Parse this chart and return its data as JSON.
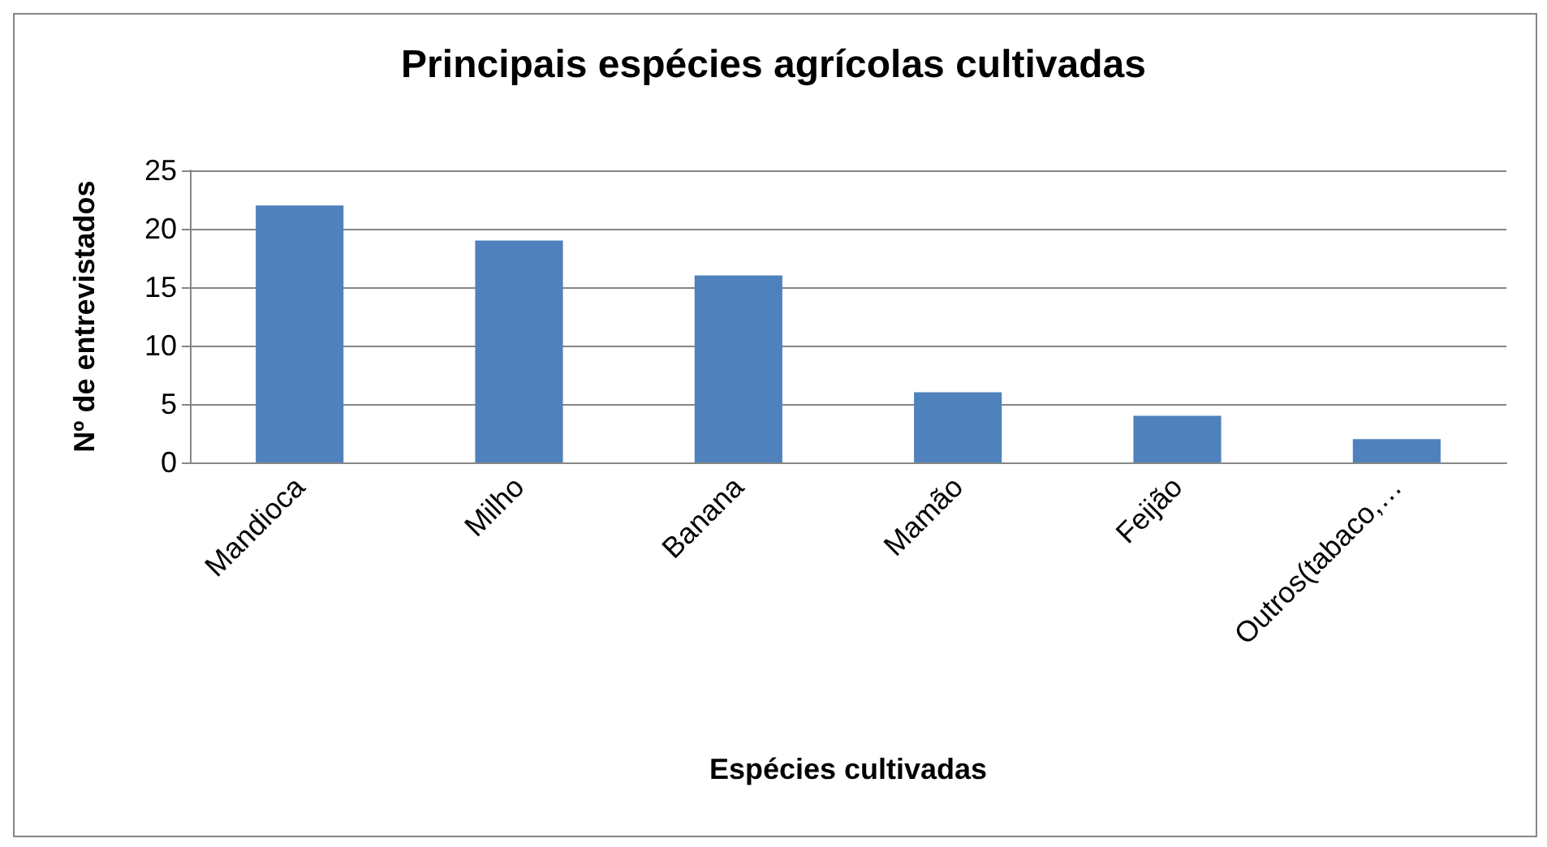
{
  "chart_data": {
    "type": "bar",
    "title": "Principais espécies agrícolas cultivadas",
    "xlabel": "Espécies cultivadas",
    "ylabel": "Nº de entrevistados",
    "categories": [
      "Mandioca",
      "Milho",
      "Banana",
      "Mamão",
      "Feijão",
      "Outros(tabaco,…"
    ],
    "values": [
      22,
      19,
      16,
      6,
      4,
      2
    ],
    "color": "#4f81bd",
    "ylim": [
      0,
      25
    ],
    "yticks": [
      0,
      5,
      10,
      15,
      20,
      25
    ],
    "grid": "y"
  }
}
